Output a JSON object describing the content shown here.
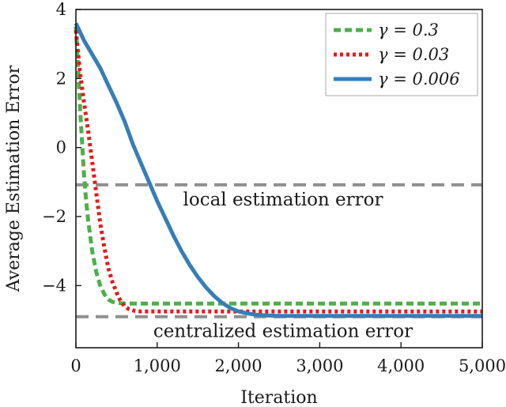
{
  "chart_data": {
    "type": "line",
    "title": "",
    "xlabel": "Iteration",
    "ylabel": "Average Estimation Error",
    "xlim": [
      0,
      5000
    ],
    "ylim": [
      -5.8,
      4
    ],
    "x_ticks": [
      0,
      1000,
      2000,
      3000,
      4000,
      5000
    ],
    "x_tick_labels": [
      "0",
      "1,000",
      "2,000",
      "3,000",
      "4,000",
      "5,000"
    ],
    "y_ticks": [
      4,
      2,
      0,
      -2,
      -4
    ],
    "y_tick_labels": [
      "4",
      "2",
      "0",
      "−2",
      "−4"
    ],
    "grid": false,
    "legend_position": "top-right",
    "series": [
      {
        "name": "γ = 0.3",
        "style": "dashed",
        "color": "#4daf4a",
        "x": [
          0,
          25,
          50,
          75,
          100,
          125,
          150,
          200,
          250,
          300,
          350,
          400,
          450,
          500,
          600,
          700,
          800,
          1000,
          5000
        ],
        "y": [
          3.5,
          2.4,
          1.2,
          0.2,
          -0.8,
          -1.5,
          -2.1,
          -3.0,
          -3.6,
          -4.0,
          -4.25,
          -4.4,
          -4.47,
          -4.5,
          -4.52,
          -4.52,
          -4.52,
          -4.52,
          -4.52
        ]
      },
      {
        "name": "γ = 0.03",
        "style": "dotted",
        "color": "#e41a1c",
        "x": [
          0,
          50,
          100,
          150,
          200,
          250,
          300,
          350,
          400,
          450,
          500,
          550,
          600,
          650,
          700,
          750,
          800,
          1000,
          5000
        ],
        "y": [
          3.4,
          2.2,
          1.3,
          0.5,
          -0.4,
          -1.3,
          -2.2,
          -2.9,
          -3.5,
          -3.9,
          -4.2,
          -4.45,
          -4.6,
          -4.68,
          -4.72,
          -4.74,
          -4.75,
          -4.75,
          -4.75
        ]
      },
      {
        "name": "γ = 0.006",
        "style": "solid",
        "color": "#377eb8",
        "x": [
          0,
          100,
          200,
          300,
          400,
          500,
          600,
          700,
          800,
          900,
          1000,
          1100,
          1200,
          1300,
          1400,
          1500,
          1600,
          1700,
          1800,
          1900,
          2000,
          2100,
          2200,
          2300,
          2400,
          2500,
          2600,
          2800,
          3000,
          5000
        ],
        "y": [
          3.6,
          3.1,
          2.7,
          2.3,
          1.8,
          1.3,
          0.75,
          0.1,
          -0.45,
          -1.0,
          -1.55,
          -2.05,
          -2.55,
          -3.0,
          -3.4,
          -3.75,
          -4.05,
          -4.3,
          -4.5,
          -4.65,
          -4.75,
          -4.8,
          -4.84,
          -4.86,
          -4.87,
          -4.88,
          -4.88,
          -4.88,
          -4.88,
          -4.88
        ]
      }
    ],
    "reference_lines": [
      {
        "label": "local estimation error",
        "y": -1.08,
        "color": "#909090"
      },
      {
        "label": "centralized estimation error",
        "y": -4.9,
        "color": "#909090"
      }
    ]
  }
}
